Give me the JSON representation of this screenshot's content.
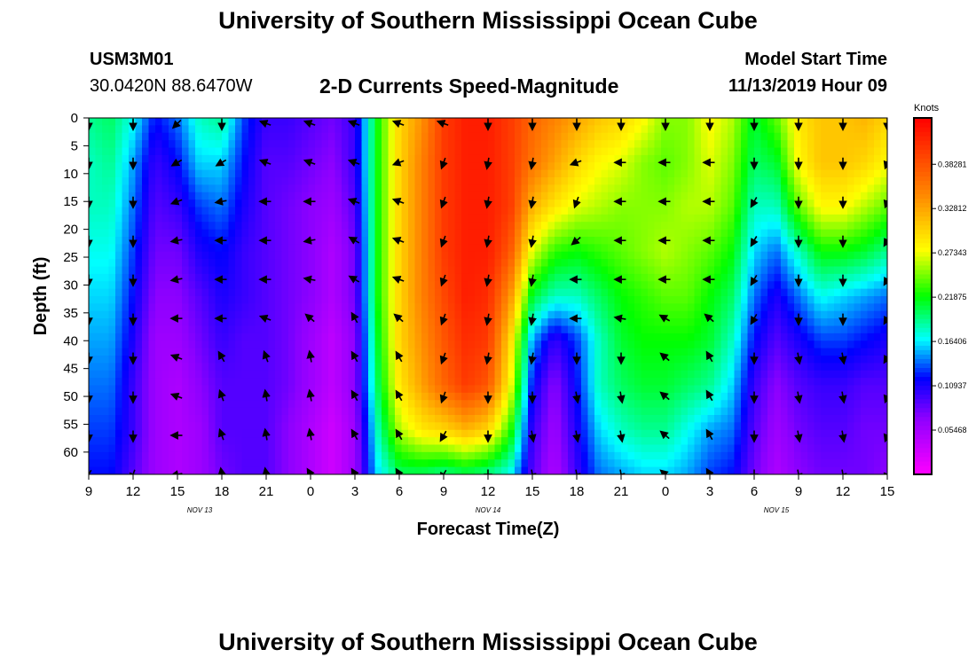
{
  "header": {
    "main_title": "University of Southern Mississippi Ocean Cube",
    "station_id": "USM3M01",
    "location": "30.0420N 88.6470W",
    "subtitle": "2-D Currents Speed-Magnitude",
    "model_start_label": "Model Start Time",
    "model_start_value": "11/13/2019 Hour 09",
    "footer_title": "University of Southern Mississippi Ocean Cube"
  },
  "chart_data": {
    "type": "heatmap",
    "title": "2-D Currents Speed-Magnitude",
    "xlabel": "Forecast Time(Z)",
    "ylabel": "Depth (ft)",
    "x_tick_labels": [
      "9",
      "12",
      "15",
      "18",
      "21",
      "0",
      "3",
      "6",
      "9",
      "12",
      "15",
      "18",
      "21",
      "0",
      "3",
      "6",
      "9",
      "12",
      "15"
    ],
    "x_hours": [
      0,
      3,
      6,
      9,
      12,
      15,
      18,
      21,
      24,
      27,
      30,
      33,
      36,
      39,
      42,
      45,
      48,
      51,
      54
    ],
    "xlim": [
      0,
      54
    ],
    "date_labels": [
      {
        "label": "NOV 13",
        "hour": 7.5
      },
      {
        "label": "NOV 14",
        "hour": 27
      },
      {
        "label": "NOV 15",
        "hour": 46.5
      }
    ],
    "y_ticks": [
      0,
      5,
      10,
      15,
      20,
      25,
      30,
      35,
      40,
      45,
      50,
      55,
      60
    ],
    "ylim": [
      0,
      64
    ],
    "colorbar": {
      "label": "Knots",
      "min": 0,
      "max": 0.44,
      "ticks": [
        0.05468,
        0.10937,
        0.16406,
        0.21875,
        0.27343,
        0.32812,
        0.38281
      ],
      "tick_labels": [
        "0.05468",
        "0.10937",
        "0.16406",
        "0.21875",
        "0.27343",
        "0.32812",
        "0.38281"
      ]
    },
    "speed_grid": {
      "depths": [
        0,
        8,
        16,
        24,
        32,
        40,
        48,
        56,
        64
      ],
      "hours": [
        0,
        1.5,
        3,
        4.5,
        6,
        7.5,
        9,
        10.5,
        12,
        13.5,
        15,
        16.5,
        18,
        19.5,
        21,
        22.5,
        24,
        25.5,
        27,
        28.5,
        30,
        31.5,
        33,
        34.5,
        36,
        37.5,
        39,
        40.5,
        42,
        43.5,
        45,
        46.5,
        48,
        49.5,
        51,
        52.5,
        54
      ],
      "values": [
        [
          0.19,
          0.2,
          0.17,
          0.12,
          0.14,
          0.18,
          0.19,
          0.13,
          0.1,
          0.1,
          0.09,
          0.08,
          0.1,
          0.22,
          0.3,
          0.34,
          0.4,
          0.42,
          0.42,
          0.4,
          0.37,
          0.35,
          0.33,
          0.31,
          0.3,
          0.28,
          0.25,
          0.25,
          0.28,
          0.26,
          0.21,
          0.24,
          0.29,
          0.31,
          0.31,
          0.32,
          0.3
        ],
        [
          0.18,
          0.19,
          0.15,
          0.1,
          0.12,
          0.16,
          0.16,
          0.12,
          0.09,
          0.09,
          0.08,
          0.07,
          0.1,
          0.22,
          0.3,
          0.35,
          0.4,
          0.42,
          0.42,
          0.4,
          0.36,
          0.33,
          0.3,
          0.28,
          0.27,
          0.25,
          0.24,
          0.25,
          0.27,
          0.25,
          0.2,
          0.21,
          0.28,
          0.31,
          0.31,
          0.3,
          0.28
        ],
        [
          0.18,
          0.18,
          0.14,
          0.09,
          0.1,
          0.13,
          0.14,
          0.11,
          0.09,
          0.08,
          0.07,
          0.06,
          0.09,
          0.22,
          0.3,
          0.35,
          0.4,
          0.42,
          0.42,
          0.4,
          0.32,
          0.29,
          0.27,
          0.26,
          0.25,
          0.25,
          0.25,
          0.26,
          0.26,
          0.24,
          0.18,
          0.18,
          0.24,
          0.28,
          0.28,
          0.26,
          0.24
        ],
        [
          0.17,
          0.17,
          0.13,
          0.08,
          0.08,
          0.11,
          0.12,
          0.1,
          0.09,
          0.08,
          0.07,
          0.05,
          0.08,
          0.22,
          0.3,
          0.35,
          0.4,
          0.42,
          0.42,
          0.38,
          0.27,
          0.23,
          0.22,
          0.23,
          0.24,
          0.25,
          0.26,
          0.25,
          0.24,
          0.22,
          0.16,
          0.14,
          0.18,
          0.22,
          0.22,
          0.21,
          0.19
        ],
        [
          0.16,
          0.16,
          0.12,
          0.07,
          0.07,
          0.09,
          0.11,
          0.1,
          0.09,
          0.08,
          0.07,
          0.05,
          0.08,
          0.22,
          0.3,
          0.35,
          0.39,
          0.42,
          0.41,
          0.34,
          0.21,
          0.18,
          0.18,
          0.2,
          0.22,
          0.23,
          0.24,
          0.24,
          0.22,
          0.2,
          0.14,
          0.11,
          0.14,
          0.17,
          0.16,
          0.15,
          0.14
        ],
        [
          0.15,
          0.15,
          0.11,
          0.06,
          0.06,
          0.08,
          0.1,
          0.09,
          0.09,
          0.08,
          0.06,
          0.04,
          0.07,
          0.21,
          0.3,
          0.34,
          0.38,
          0.41,
          0.4,
          0.3,
          0.15,
          0.1,
          0.13,
          0.18,
          0.21,
          0.22,
          0.22,
          0.22,
          0.21,
          0.18,
          0.12,
          0.09,
          0.11,
          0.13,
          0.13,
          0.12,
          0.11
        ],
        [
          0.14,
          0.14,
          0.1,
          0.06,
          0.05,
          0.07,
          0.09,
          0.09,
          0.09,
          0.08,
          0.06,
          0.04,
          0.07,
          0.2,
          0.29,
          0.33,
          0.37,
          0.4,
          0.38,
          0.28,
          0.12,
          0.07,
          0.12,
          0.18,
          0.2,
          0.21,
          0.21,
          0.2,
          0.19,
          0.16,
          0.1,
          0.07,
          0.09,
          0.1,
          0.1,
          0.09,
          0.09
        ],
        [
          0.13,
          0.13,
          0.1,
          0.06,
          0.05,
          0.06,
          0.09,
          0.09,
          0.09,
          0.07,
          0.05,
          0.03,
          0.06,
          0.18,
          0.26,
          0.29,
          0.3,
          0.32,
          0.3,
          0.23,
          0.1,
          0.06,
          0.11,
          0.16,
          0.18,
          0.19,
          0.19,
          0.17,
          0.15,
          0.14,
          0.09,
          0.06,
          0.08,
          0.09,
          0.09,
          0.08,
          0.08
        ],
        [
          0.12,
          0.12,
          0.09,
          0.06,
          0.05,
          0.06,
          0.08,
          0.09,
          0.09,
          0.07,
          0.05,
          0.03,
          0.06,
          0.16,
          0.2,
          0.2,
          0.19,
          0.2,
          0.19,
          0.17,
          0.09,
          0.05,
          0.1,
          0.14,
          0.15,
          0.16,
          0.16,
          0.15,
          0.13,
          0.12,
          0.08,
          0.05,
          0.07,
          0.08,
          0.08,
          0.08,
          0.07
        ]
      ]
    },
    "vectors": {
      "hours": [
        0,
        3,
        6,
        9,
        12,
        15,
        18,
        21,
        24,
        27,
        30,
        33,
        36,
        39,
        42,
        45,
        48,
        51,
        54
      ],
      "depths": [
        1,
        8,
        15,
        22,
        29,
        36,
        43,
        50,
        57,
        64
      ],
      "angles_deg": [
        [
          90,
          90,
          135,
          90,
          200,
          200,
          200,
          200,
          200,
          90,
          90,
          90,
          90,
          90,
          90,
          90,
          90,
          90,
          90
        ],
        [
          90,
          90,
          150,
          150,
          200,
          200,
          200,
          160,
          110,
          100,
          100,
          160,
          180,
          180,
          180,
          90,
          90,
          90,
          110
        ],
        [
          90,
          90,
          160,
          170,
          180,
          180,
          200,
          200,
          110,
          100,
          100,
          110,
          180,
          180,
          180,
          120,
          90,
          90,
          110
        ],
        [
          90,
          90,
          170,
          180,
          180,
          170,
          210,
          200,
          110,
          100,
          100,
          140,
          180,
          180,
          180,
          120,
          90,
          90,
          120
        ],
        [
          90,
          90,
          170,
          180,
          180,
          190,
          210,
          200,
          110,
          100,
          100,
          180,
          180,
          180,
          180,
          120,
          90,
          90,
          120
        ],
        [
          90,
          90,
          180,
          180,
          200,
          220,
          240,
          220,
          110,
          100,
          100,
          180,
          190,
          210,
          220,
          120,
          90,
          90,
          120
        ],
        [
          90,
          90,
          200,
          240,
          250,
          260,
          240,
          240,
          110,
          100,
          100,
          90,
          90,
          220,
          240,
          90,
          80,
          80,
          120
        ],
        [
          90,
          90,
          200,
          250,
          260,
          260,
          240,
          240,
          110,
          90,
          90,
          80,
          80,
          220,
          240,
          90,
          80,
          80,
          110
        ],
        [
          90,
          90,
          180,
          250,
          260,
          260,
          240,
          240,
          120,
          90,
          80,
          80,
          80,
          220,
          240,
          90,
          80,
          80,
          110
        ],
        [
          120,
          110,
          170,
          260,
          260,
          240,
          240,
          240,
          120,
          90,
          80,
          80,
          80,
          220,
          240,
          90,
          80,
          80,
          110
        ]
      ]
    }
  }
}
